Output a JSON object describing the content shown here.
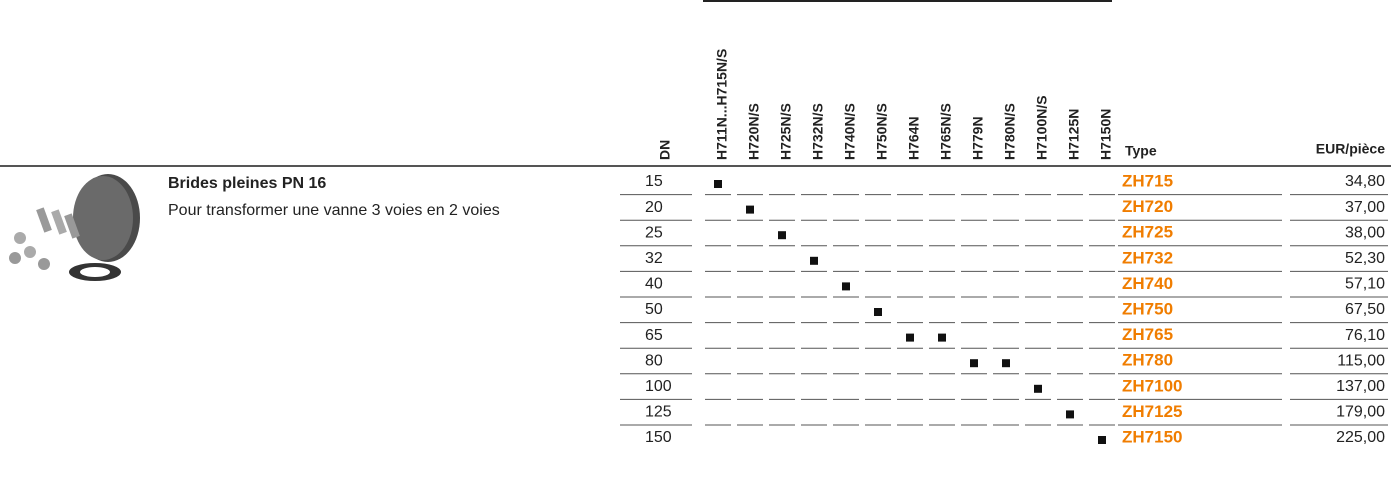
{
  "product": {
    "title": "Brides pleines PN 16",
    "description": "Pour transformer une vanne 3 voies en 2 voies"
  },
  "table": {
    "headers": {
      "dn": "DN",
      "valves": [
        "H711N...H715N/S",
        "H720N/S",
        "H725N/S",
        "H732N/S",
        "H740N/S",
        "H750N/S",
        "H764N",
        "H765N/S",
        "H779N",
        "H780N/S",
        "H7100N/S",
        "H7125N",
        "H7150N"
      ],
      "type": "Type",
      "price": "EUR/pièce"
    },
    "rows": [
      {
        "dn": 15,
        "marks": [
          true,
          false,
          false,
          false,
          false,
          false,
          false,
          false,
          false,
          false,
          false,
          false,
          false
        ],
        "type": "ZH715",
        "price": "34,80"
      },
      {
        "dn": 20,
        "marks": [
          false,
          true,
          false,
          false,
          false,
          false,
          false,
          false,
          false,
          false,
          false,
          false,
          false
        ],
        "type": "ZH720",
        "price": "37,00"
      },
      {
        "dn": 25,
        "marks": [
          false,
          false,
          true,
          false,
          false,
          false,
          false,
          false,
          false,
          false,
          false,
          false,
          false
        ],
        "type": "ZH725",
        "price": "38,00"
      },
      {
        "dn": 32,
        "marks": [
          false,
          false,
          false,
          true,
          false,
          false,
          false,
          false,
          false,
          false,
          false,
          false,
          false
        ],
        "type": "ZH732",
        "price": "52,30"
      },
      {
        "dn": 40,
        "marks": [
          false,
          false,
          false,
          false,
          true,
          false,
          false,
          false,
          false,
          false,
          false,
          false,
          false
        ],
        "type": "ZH740",
        "price": "57,10"
      },
      {
        "dn": 50,
        "marks": [
          false,
          false,
          false,
          false,
          false,
          true,
          false,
          false,
          false,
          false,
          false,
          false,
          false
        ],
        "type": "ZH750",
        "price": "67,50"
      },
      {
        "dn": 65,
        "marks": [
          false,
          false,
          false,
          false,
          false,
          false,
          true,
          true,
          false,
          false,
          false,
          false,
          false
        ],
        "type": "ZH765",
        "price": "76,10"
      },
      {
        "dn": 80,
        "marks": [
          false,
          false,
          false,
          false,
          false,
          false,
          false,
          false,
          true,
          true,
          false,
          false,
          false
        ],
        "type": "ZH780",
        "price": "115,00"
      },
      {
        "dn": 100,
        "marks": [
          false,
          false,
          false,
          false,
          false,
          false,
          false,
          false,
          false,
          false,
          true,
          false,
          false
        ],
        "type": "ZH7100",
        "price": "137,00"
      },
      {
        "dn": 125,
        "marks": [
          false,
          false,
          false,
          false,
          false,
          false,
          false,
          false,
          false,
          false,
          false,
          true,
          false
        ],
        "type": "ZH7125",
        "price": "179,00"
      },
      {
        "dn": 150,
        "marks": [
          false,
          false,
          false,
          false,
          false,
          false,
          false,
          false,
          false,
          false,
          false,
          false,
          true
        ],
        "type": "ZH7150",
        "price": "225,00"
      }
    ]
  }
}
